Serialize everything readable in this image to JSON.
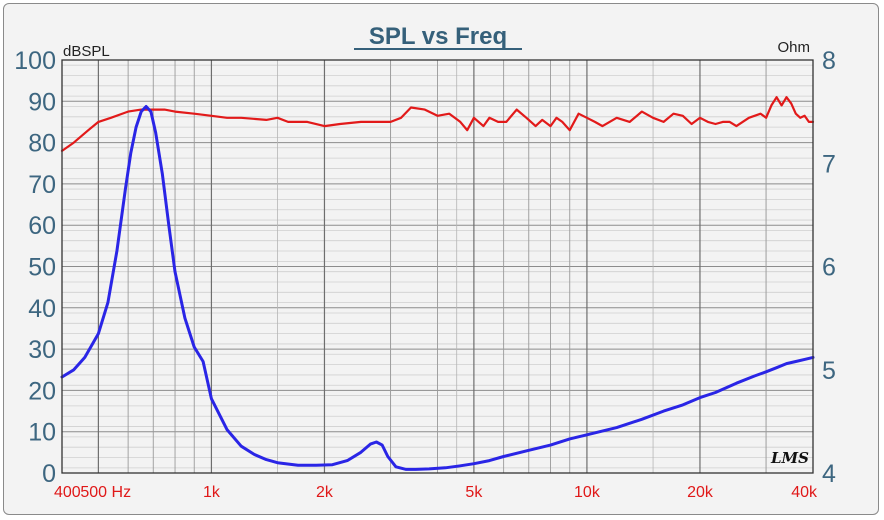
{
  "chart_data": {
    "type": "line",
    "title": "SPL vs Freq",
    "y_left_unit": "dBSPL",
    "y_right_unit": "Ohm",
    "y_left_ticks": [
      "100",
      "90",
      "80",
      "70",
      "60",
      "50",
      "40",
      "30",
      "20",
      "10",
      "0"
    ],
    "y_right_ticks": [
      "8",
      "7",
      "6",
      "5",
      "4"
    ],
    "x_ticks": [
      "400",
      "500 Hz",
      "1k",
      "2k",
      "5k",
      "10k",
      "20k",
      "40k"
    ],
    "x_scale": "log",
    "xlim": [
      400,
      40000
    ],
    "ylim_left": [
      0,
      100
    ],
    "ylim_right": [
      4,
      8
    ],
    "grid": true,
    "logo": "LMS",
    "colors": {
      "spl": "#e21a1a",
      "impedance": "#2a25e6",
      "axis_text": "#3d6680",
      "xtick_text": "#e01818",
      "title": "#35607a"
    },
    "series": [
      {
        "key": "spl",
        "axis": "left",
        "x": [
          400,
          430,
          470,
          500,
          540,
          600,
          650,
          700,
          750,
          800,
          900,
          1000,
          1100,
          1200,
          1400,
          1500,
          1600,
          1800,
          2000,
          2200,
          2500,
          2700,
          3000,
          3200,
          3400,
          3700,
          4000,
          4300,
          4600,
          4800,
          5000,
          5300,
          5500,
          5800,
          6100,
          6500,
          6900,
          7300,
          7600,
          8000,
          8300,
          8600,
          9000,
          9500,
          10000,
          10500,
          11000,
          12000,
          13000,
          14000,
          15000,
          16000,
          17000,
          18000,
          19000,
          20000,
          21000,
          22000,
          23000,
          24000,
          25000,
          27000,
          29000,
          30000,
          31000,
          32000,
          33000,
          34000,
          35000,
          36000,
          37000,
          38000,
          39000,
          40000
        ],
        "y": [
          78,
          80,
          83,
          85,
          86,
          87.5,
          88,
          88,
          88,
          87.5,
          87,
          86.5,
          86,
          86,
          85.5,
          86,
          85,
          85,
          84,
          84.5,
          85,
          85,
          85,
          86,
          88.5,
          88,
          86.5,
          87,
          85,
          83,
          86,
          84,
          86,
          85,
          85,
          88,
          86,
          84,
          85.5,
          84,
          86,
          85,
          83,
          87,
          86,
          85,
          84,
          86,
          85,
          87.5,
          86,
          85,
          87,
          86.5,
          84.5,
          86,
          85,
          84.5,
          85,
          85,
          84,
          86,
          87,
          86,
          89,
          91,
          89,
          91,
          89.5,
          87,
          86,
          86.5,
          85,
          85
        ]
      },
      {
        "key": "impedance",
        "axis": "right",
        "x": [
          400,
          430,
          460,
          500,
          530,
          560,
          590,
          610,
          630,
          650,
          670,
          690,
          710,
          740,
          770,
          800,
          850,
          900,
          950,
          1000,
          1100,
          1200,
          1300,
          1400,
          1500,
          1700,
          1900,
          2100,
          2300,
          2500,
          2650,
          2750,
          2850,
          2950,
          3100,
          3300,
          3500,
          3800,
          4200,
          4600,
          5000,
          5500,
          6000,
          7000,
          8000,
          9000,
          10000,
          12000,
          14000,
          16000,
          18000,
          20000,
          22000,
          25000,
          28000,
          30000,
          32000,
          34000,
          36000,
          38000,
          40000
        ],
        "y": [
          4.93,
          5.0,
          5.12,
          5.35,
          5.65,
          6.15,
          6.75,
          7.1,
          7.35,
          7.5,
          7.55,
          7.5,
          7.3,
          6.9,
          6.4,
          5.95,
          5.5,
          5.22,
          5.08,
          4.72,
          4.42,
          4.26,
          4.18,
          4.13,
          4.1,
          4.075,
          4.075,
          4.08,
          4.12,
          4.2,
          4.28,
          4.3,
          4.27,
          4.16,
          4.06,
          4.035,
          4.035,
          4.04,
          4.05,
          4.07,
          4.09,
          4.12,
          4.16,
          4.22,
          4.27,
          4.33,
          4.37,
          4.44,
          4.52,
          4.6,
          4.66,
          4.73,
          4.78,
          4.87,
          4.94,
          4.98,
          5.02,
          5.06,
          5.08,
          5.1,
          5.12
        ]
      }
    ]
  }
}
